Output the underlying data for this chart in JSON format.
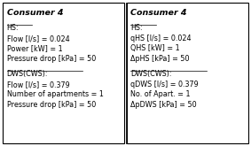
{
  "left_box": {
    "header": "Consumer 4",
    "sections": [
      {
        "label": "HS:",
        "underline": true,
        "lines": [
          "Flow [l/s] = 0.024",
          "Power [kW] = 1",
          "Pressure drop [kPa] = 50"
        ]
      },
      {
        "label": "DWS(CWS):",
        "underline": true,
        "lines": [
          "Flow [l/s] = 0.379",
          "Number of apartments = 1",
          "Pressure drop [kPa] = 50"
        ]
      }
    ]
  },
  "right_box": {
    "header": "Consumer 4",
    "sections": [
      {
        "label": "HS:",
        "underline": true,
        "lines": [
          "qHS [l/s] = 0.024",
          "QHS [kW] = 1",
          "ΔpHS [kPa] = 50"
        ]
      },
      {
        "label": "DWS(CWS):",
        "underline": true,
        "lines": [
          "qDWS [l/s] = 0.379",
          "No. of Apart. = 1",
          "ΔpDWS [kPa] = 50"
        ]
      }
    ]
  },
  "bg_color": "#ffffff",
  "border_color": "#000000",
  "text_color": "#000000",
  "header_fontsize": 6.8,
  "body_fontsize": 5.8,
  "figsize": [
    2.83,
    1.65
  ],
  "dpi": 100
}
